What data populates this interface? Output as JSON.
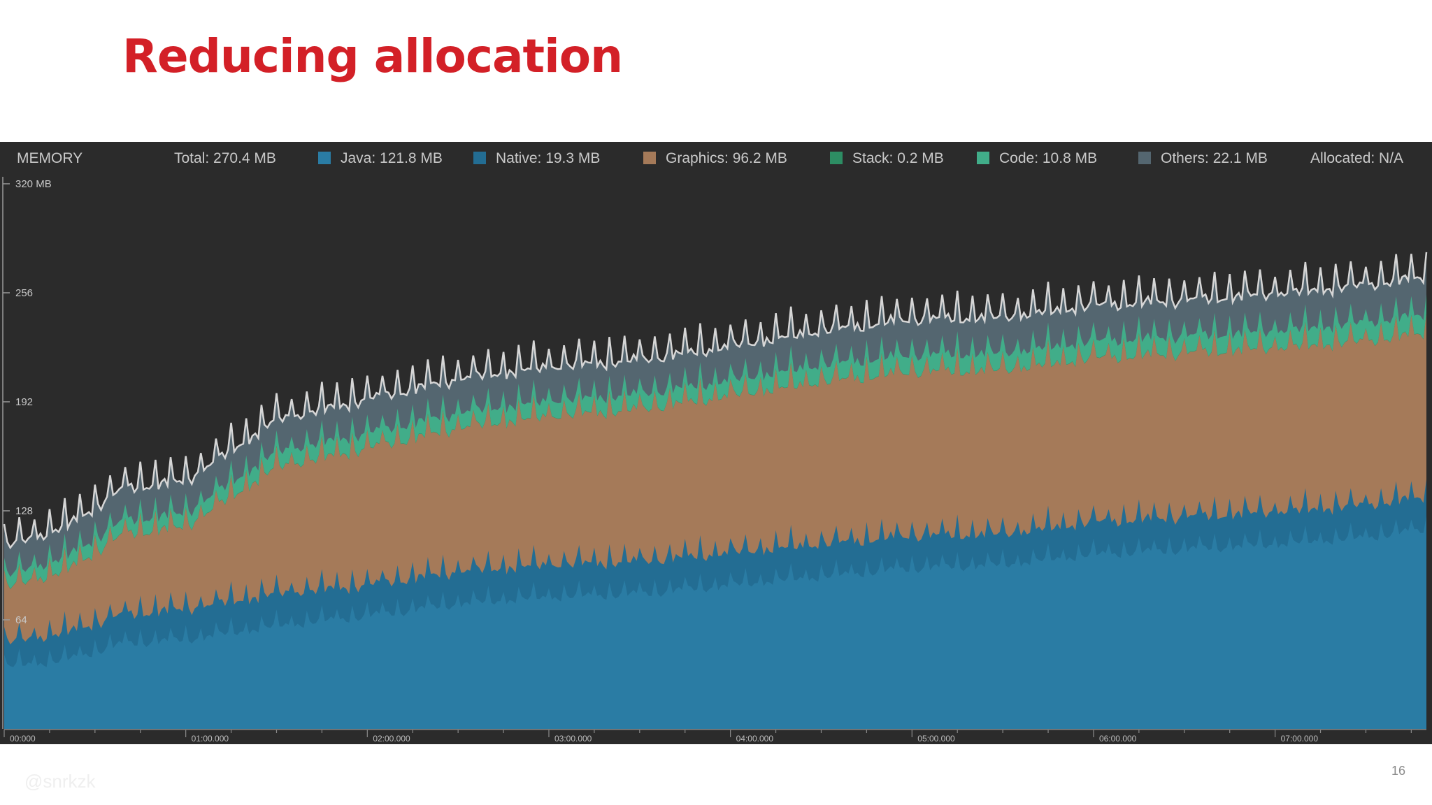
{
  "slide": {
    "title": "Reducing allocation",
    "page_number": "16",
    "watermark": "@snrkzk"
  },
  "colors": {
    "java": "#2a7ca4",
    "native": "#236d93",
    "graphics": "#a57a59",
    "stack": "#2d8d63",
    "code": "#41ad89",
    "others": "#546670",
    "total_line": "#d6d6d6",
    "panel_bg": "#2b2b2b",
    "title": "#d32027"
  },
  "legend": {
    "header": "MEMORY",
    "total": "Total: 270.4 MB",
    "items": [
      {
        "key": "java",
        "label": "Java: 121.8 MB"
      },
      {
        "key": "native",
        "label": "Native: 19.3 MB"
      },
      {
        "key": "graphics",
        "label": "Graphics: 96.2 MB"
      },
      {
        "key": "stack",
        "label": "Stack: 0.2 MB"
      },
      {
        "key": "code",
        "label": "Code: 10.8 MB"
      },
      {
        "key": "others",
        "label": "Others: 22.1 MB"
      }
    ],
    "allocated": "Allocated: N/A"
  },
  "chart_data": {
    "type": "area",
    "stacked": true,
    "ylim": [
      0,
      320
    ],
    "y_ticks": [
      {
        "value": 320,
        "label": "320 MB"
      },
      {
        "value": 256,
        "label": "256"
      },
      {
        "value": 192,
        "label": "192"
      },
      {
        "value": 128,
        "label": "128"
      },
      {
        "value": 64,
        "label": "64"
      }
    ],
    "x_ticks": [
      "00:000",
      "01:00.000",
      "02:00.000",
      "03:00.000",
      "04:00.000",
      "05:00.000",
      "06:00.000",
      "07:00.000"
    ],
    "x_range_seconds": [
      0,
      470
    ],
    "series_keys": [
      "java",
      "native",
      "graphics",
      "stack",
      "code",
      "others"
    ],
    "trend": {
      "x": [
        0,
        20,
        40,
        60,
        90,
        120,
        150,
        180,
        210,
        240,
        270,
        300,
        330,
        360,
        390,
        420,
        450,
        470
      ],
      "java": [
        36,
        40,
        50,
        52,
        60,
        66,
        73,
        77,
        79,
        84,
        89,
        94,
        96,
        102,
        105,
        108,
        112,
        117
      ],
      "native": [
        14,
        16,
        17,
        18,
        19,
        18,
        19,
        19,
        19,
        19,
        19,
        19,
        18,
        19,
        19,
        19,
        19,
        19
      ],
      "graphics": [
        32,
        36,
        47,
        48,
        74,
        80,
        84,
        87,
        89,
        92,
        95,
        96,
        96,
        96,
        96,
        96,
        96,
        96
      ],
      "stack": [
        0.2,
        0.2,
        0.2,
        0.2,
        0.2,
        0.2,
        0.2,
        0.2,
        0.2,
        0.2,
        0.2,
        0.2,
        0.2,
        0.2,
        0.2,
        0.2,
        0.2,
        0.2
      ],
      "code": [
        7,
        8,
        8,
        8,
        9,
        9,
        9,
        9,
        9,
        9,
        10,
        10,
        10,
        10,
        10,
        10,
        11,
        11
      ],
      "others": [
        17,
        18,
        19,
        19,
        19,
        20,
        20,
        20,
        20,
        20,
        20,
        21,
        21,
        21,
        21,
        22,
        22,
        22
      ]
    },
    "spike_amplitude_mb": 14,
    "spike_period_seconds": 5
  }
}
